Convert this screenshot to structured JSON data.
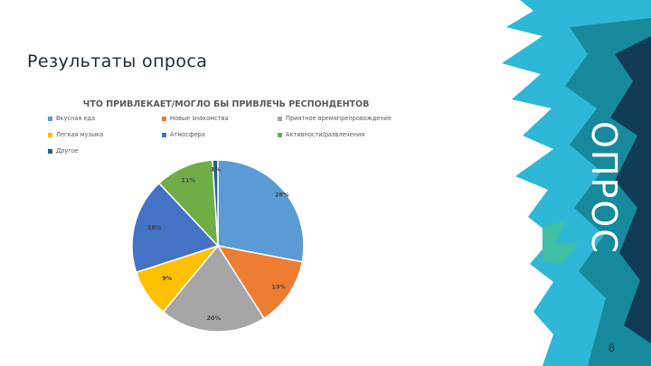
{
  "slide": {
    "title": "Результаты опроса",
    "side_label": "ОПРОС",
    "page_number": "8"
  },
  "colors": {
    "decor_cyan": "#2eb7d6",
    "decor_teal": "#168a9c",
    "decor_dark": "#0f3b57",
    "decor_green": "#3fbfa4"
  },
  "chart_data": {
    "type": "pie",
    "title": "ЧТО ПРИВЛЕКАЕТ/МОГЛО БЫ ПРИВЛЕЧЬ РЕСПОНДЕНТОВ",
    "legend_position": "top",
    "series": [
      {
        "name": "Вкусная еда",
        "value": 28,
        "label": "28%",
        "color": "#5b9bd5"
      },
      {
        "name": "Новые знакомства",
        "value": 13,
        "label": "13%",
        "color": "#ed7d31"
      },
      {
        "name": "Приятное времяпрепровождение",
        "value": 20,
        "label": "20%",
        "color": "#a5a5a5"
      },
      {
        "name": "Легкая музыка",
        "value": 9,
        "label": "9%",
        "color": "#ffc000"
      },
      {
        "name": "Атмосфера",
        "value": 18,
        "label": "18%",
        "color": "#4472c4"
      },
      {
        "name": "Активности/развлечения",
        "value": 11,
        "label": "11%",
        "color": "#70ad47"
      },
      {
        "name": "Другое",
        "value": 1,
        "label": "1%",
        "color": "#255e91"
      }
    ]
  }
}
